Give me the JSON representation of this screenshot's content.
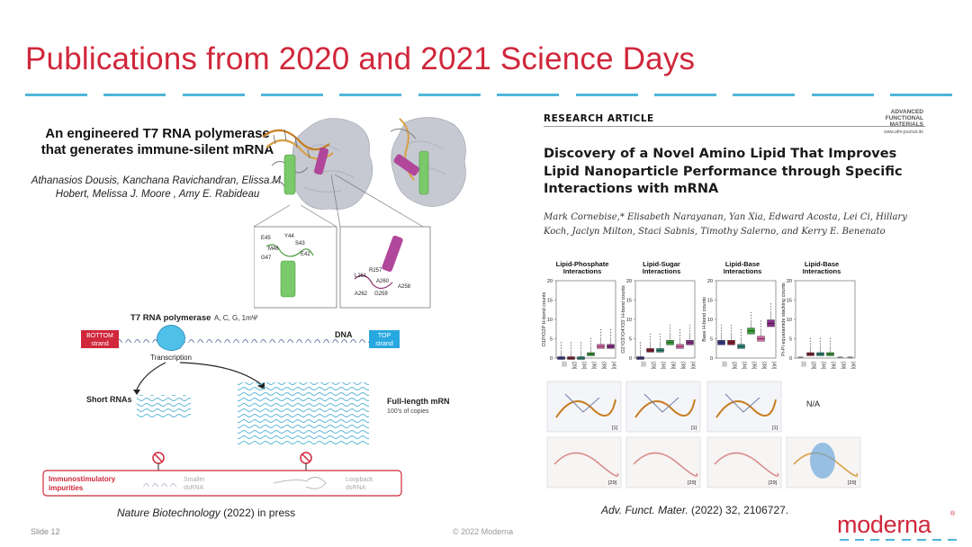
{
  "slide": {
    "title": "Publications from 2020 and 2021 Science Days",
    "slide_number": "Slide 12",
    "copyright": "© 2022 Moderna",
    "logo_text": "moderna",
    "logo_mark": "®"
  },
  "left_paper": {
    "title": "An engineered T7 RNA polymerase that generates immune-silent mRNA",
    "authors": "Athanasios Dousis, Kanchana Ravichandran, Elissa M. Hobert, Melissa J. Moore , Amy E. Rabideau",
    "citation_journal": "Nature Biotechnology",
    "citation_rest": " (2022) in press",
    "mol_labels_green": [
      "E45",
      "Y44",
      "S43",
      "M46",
      "E42",
      "G47"
    ],
    "mol_labels_pink": [
      "R257",
      "L261",
      "A260",
      "A258",
      "A262",
      "G259"
    ],
    "schematic": {
      "polymerase_label": "T7 RNA polymerase",
      "nucleotides": "A, C, G, 1mΨ",
      "dna_label": "DNA",
      "bottom_strand": [
        "BOTTOM",
        "strand"
      ],
      "top_strand": [
        "TOP",
        "strand"
      ],
      "transcription": "Transcription",
      "short_rnas": "Short RNAs",
      "full_length": "Full-length mRNA",
      "copies": "100's of copies",
      "immuno": [
        "Immunostimulatory",
        "impurities"
      ],
      "smaller": [
        "Smaller",
        "dsRNA"
      ],
      "loopback": [
        "Loopback",
        "dsRNA"
      ]
    },
    "colors": {
      "bottom_strand": "#d0273b",
      "top_strand": "#28a8e0",
      "polymerase": "#4fc0e8",
      "helix_green": "#7ac96a",
      "helix_pink": "#b0479a"
    }
  },
  "right_paper": {
    "section_label": "RESEARCH ARTICLE",
    "journal_logo": [
      "ADVANCED",
      "FUNCTIONAL",
      "MATERIALS"
    ],
    "journal_url": "www.afm-journal.de",
    "title": "Discovery of a Novel Amino Lipid That Improves Lipid Nanoparticle Performance through Specific Interactions with mRNA",
    "authors": "Mark Cornebise,* Elisabeth Narayanan, Yan Xia, Edward Acosta, Lei Ci, Hillary Koch, Jaclyn Milton, Staci Sabnis, Timothy Salerno, and Kerry E. Benenato",
    "citation_journal": "Adv. Funct. Mater.",
    "citation_rest": " (2022) 32, 2106727.",
    "panels": [
      {
        "head": [
          "Lipid-Phosphate",
          "Interactions"
        ],
        "ylabel": "O1P/O2P H-bond counts"
      },
      {
        "head": [
          "Lipid-Sugar",
          "Interactions"
        ],
        "ylabel": "O2'/O3'/O4'/O5' H-bond counts"
      },
      {
        "head": [
          "Lipid-Base",
          "Interactions"
        ],
        "ylabel": "Base H-bond counts"
      },
      {
        "head": [
          "Lipid-Base",
          "Interactions"
        ],
        "ylabel": "Pi-Pi equaramide stacking counts"
      }
    ],
    "x_ticks": [
      "[1]",
      "[29]",
      "[34]",
      "[36]",
      "[39]",
      "[40]"
    ],
    "y_ticks": [
      "0",
      "5",
      "10",
      "15",
      "20"
    ],
    "na_label": "N/A",
    "image_tags_top": [
      "[1]",
      "[1]",
      "[1]"
    ],
    "image_tags_bottom": [
      "[29]",
      "[29]",
      "[29]",
      "[29]"
    ],
    "chart_data": {
      "type": "box",
      "categories": [
        "[1]",
        "[29]",
        "[34]",
        "[36]",
        "[39]",
        "[40]"
      ],
      "ylim": [
        0,
        20
      ],
      "series": [
        {
          "name": "Lipid-Phosphate Interactions",
          "values": [
            0,
            0,
            0,
            1,
            3,
            3
          ]
        },
        {
          "name": "Lipid-Sugar Interactions",
          "values": [
            0,
            2,
            2,
            4,
            3,
            4
          ]
        },
        {
          "name": "Lipid-Base Interactions",
          "values": [
            4,
            4,
            3,
            7,
            5,
            9
          ]
        },
        {
          "name": "Lipid-Base Interactions",
          "values": [
            0,
            1,
            1,
            1,
            0,
            0
          ]
        }
      ],
      "box_colors": [
        "#3b3b8f",
        "#8b1e2e",
        "#2a8a7a",
        "#3aa23a",
        "#d966a8",
        "#8b2f8b"
      ]
    }
  }
}
